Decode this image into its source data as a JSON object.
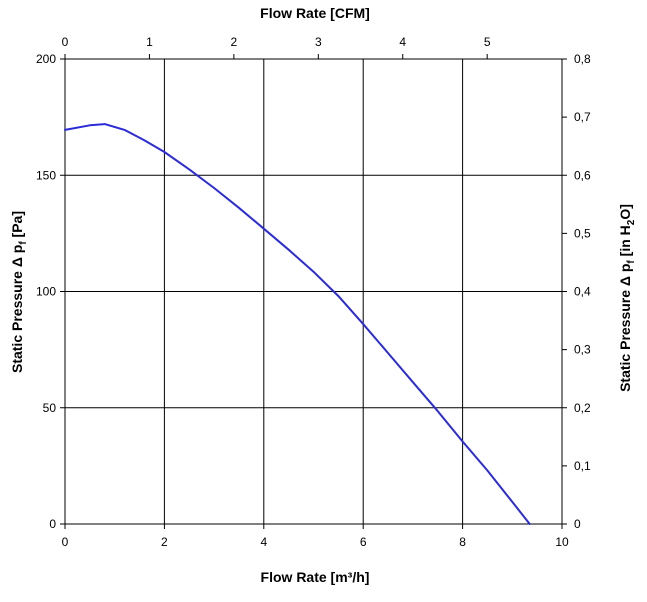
{
  "chart_data": {
    "type": "line",
    "x_axis_bottom": {
      "label": "Flow Rate [m³/h]",
      "range": [
        0,
        10
      ],
      "ticks": [
        "0",
        "2",
        "4",
        "6",
        "8",
        "10"
      ]
    },
    "x_axis_top": {
      "label": "Flow Rate [CFM]",
      "range": [
        0,
        5.886
      ],
      "ticks": [
        "0",
        "1",
        "2",
        "3",
        "4",
        "5"
      ]
    },
    "y_axis_left": {
      "label_main": "Static Pressure Δ p",
      "label_sub": "f",
      "label_unit": " [Pa]",
      "range": [
        0,
        200
      ],
      "ticks": [
        "0",
        "50",
        "100",
        "150",
        "200"
      ]
    },
    "y_axis_right": {
      "label_main": "Static Pressure Δ p",
      "label_sub": "f",
      "label_unit_pre": " [in H",
      "label_unit_sub": "2",
      "label_unit_post": "O]",
      "range": [
        0,
        0.8
      ],
      "ticks": [
        "0",
        "0,1",
        "0,2",
        "0,3",
        "0,4",
        "0,5",
        "0,6",
        "0,7",
        "0,8"
      ]
    },
    "grid": true,
    "series": [
      {
        "color": "#2b2bd9",
        "x": [
          0,
          0.5,
          0.8,
          1.2,
          1.6,
          2.0,
          2.5,
          3.0,
          3.5,
          4.0,
          4.5,
          5.0,
          5.5,
          6.0,
          6.5,
          7.0,
          7.5,
          8.0,
          8.5,
          9.0,
          9.35
        ],
        "y": [
          169.5,
          171.5,
          172,
          169.5,
          165,
          160,
          152.5,
          144.5,
          136,
          127,
          118,
          108.5,
          98,
          86,
          73.5,
          61,
          48.5,
          35.5,
          23,
          9.5,
          0
        ]
      }
    ]
  }
}
